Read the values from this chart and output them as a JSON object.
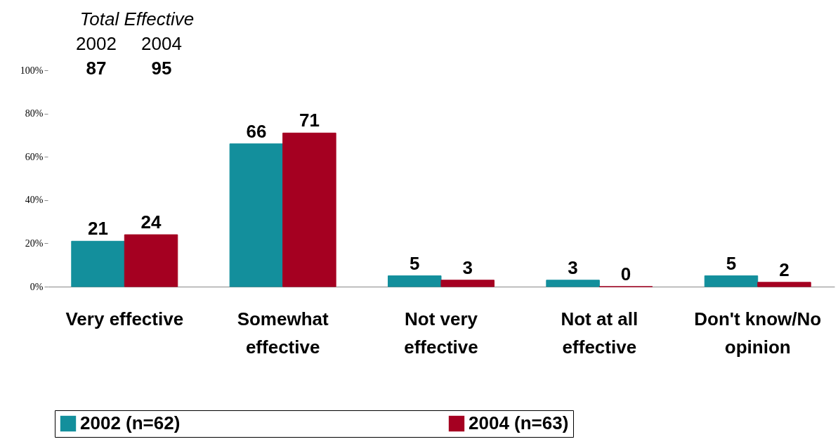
{
  "chart_data": {
    "type": "bar",
    "categories": [
      "Very effective",
      "Somewhat effective",
      "Not very effective",
      "Not at all effective",
      "Don't know/No opinion"
    ],
    "series": [
      {
        "name": "2002 (n=62)",
        "color": "#138f9c",
        "values": [
          21,
          66,
          5,
          3,
          5
        ]
      },
      {
        "name": "2004 (n=63)",
        "color": "#a50021",
        "values": [
          24,
          71,
          3,
          0,
          2
        ]
      }
    ],
    "ylim": [
      0,
      100
    ],
    "yticks": [
      {
        "value": 0,
        "label": "0%"
      },
      {
        "value": 20,
        "label": "20%"
      },
      {
        "value": 40,
        "label": "40%"
      },
      {
        "value": 60,
        "label": "60%"
      },
      {
        "value": 80,
        "label": "80%"
      },
      {
        "value": 100,
        "label": "100%"
      }
    ],
    "data_labels": true,
    "grid": false,
    "legend": "bottom",
    "annotations": [
      "Total Effective",
      "2002",
      "2004",
      "87",
      "95"
    ]
  }
}
